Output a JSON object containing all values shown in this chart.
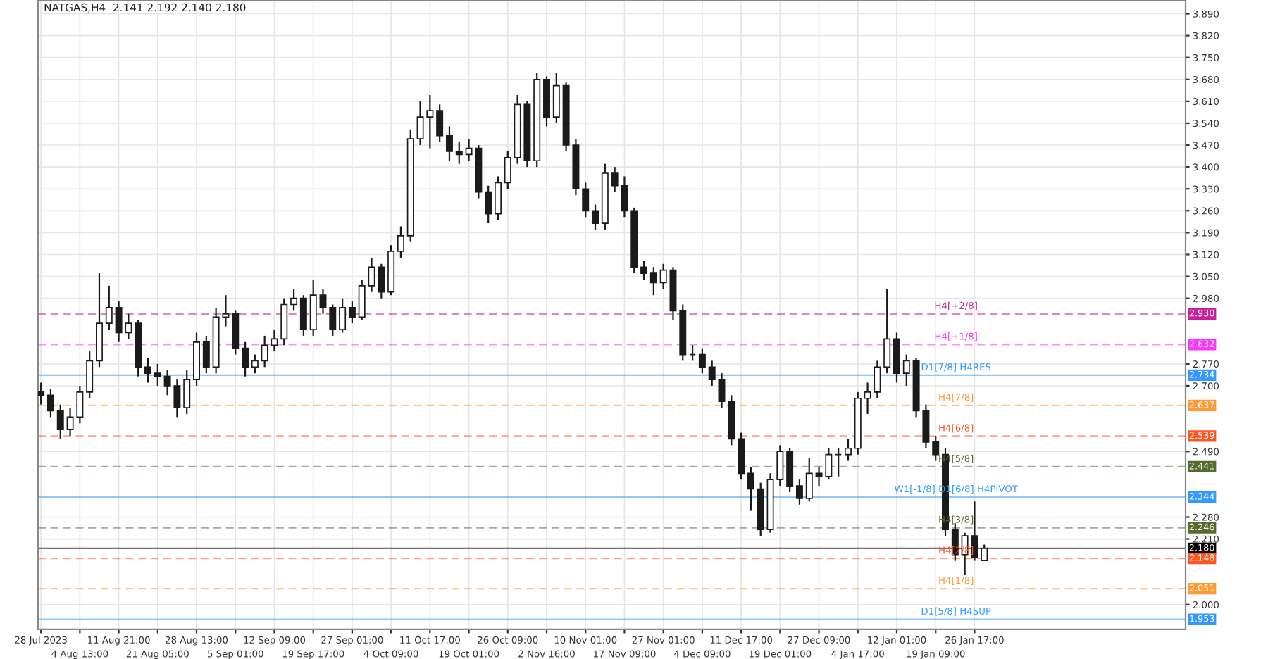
{
  "chart_data": {
    "type": "candlestick",
    "title": "NATGAS,H4  2.141 2.192 2.140 2.180",
    "color": "#1a1a1a",
    "categories": [
      "28 Jul 2023",
      null,
      null,
      null,
      "4 Aug 13:00",
      null,
      null,
      null,
      "11 Aug 21:00",
      null,
      null,
      null,
      "21 Aug 05:00",
      null,
      null,
      null,
      "28 Aug 13:00",
      null,
      null,
      null,
      "5 Sep 01:00",
      null,
      null,
      null,
      "12 Sep 09:00",
      null,
      null,
      null,
      "19 Sep 17:00",
      null,
      null,
      null,
      "27 Sep 01:00",
      null,
      null,
      null,
      "4 Oct 09:00",
      null,
      null,
      null,
      "11 Oct 17:00",
      null,
      null,
      null,
      "19 Oct 01:00",
      null,
      null,
      null,
      "26 Oct 09:00",
      null,
      null,
      null,
      "2 Nov 16:00",
      null,
      null,
      null,
      "10 Nov 01:00",
      null,
      null,
      null,
      "17 Nov 09:00",
      null,
      null,
      null,
      "27 Nov 01:00",
      null,
      null,
      null,
      "4 Dec 09:00",
      null,
      null,
      null,
      "11 Dec 17:00",
      null,
      null,
      null,
      "19 Dec 01:00",
      null,
      null,
      null,
      "27 Dec 09:00",
      null,
      null,
      null,
      "4 Jan 17:00",
      null,
      null,
      null,
      "12 Jan 01:00",
      null,
      null,
      null,
      "19 Jan 09:00",
      null,
      null,
      null,
      "26 Jan 17:00",
      null,
      null,
      null,
      null,
      null,
      null,
      null,
      null,
      null,
      null,
      null,
      null,
      null,
      null,
      null,
      null,
      null,
      null,
      null,
      null,
      null
    ],
    "ohlc": [
      [
        2.68,
        2.71,
        2.64,
        2.67
      ],
      [
        2.67,
        2.69,
        2.6,
        2.62
      ],
      [
        2.62,
        2.64,
        2.53,
        2.56
      ],
      [
        2.56,
        2.63,
        2.54,
        2.6
      ],
      [
        2.6,
        2.7,
        2.58,
        2.68
      ],
      [
        2.68,
        2.81,
        2.66,
        2.78
      ],
      [
        2.78,
        3.06,
        2.76,
        2.9
      ],
      [
        2.9,
        3.02,
        2.88,
        2.95
      ],
      [
        2.95,
        2.97,
        2.84,
        2.87
      ],
      [
        2.87,
        2.93,
        2.85,
        2.9
      ],
      [
        2.9,
        2.91,
        2.73,
        2.76
      ],
      [
        2.76,
        2.79,
        2.71,
        2.74
      ],
      [
        2.74,
        2.77,
        2.7,
        2.73
      ],
      [
        2.73,
        2.75,
        2.67,
        2.7
      ],
      [
        2.7,
        2.72,
        2.6,
        2.63
      ],
      [
        2.63,
        2.75,
        2.61,
        2.72
      ],
      [
        2.72,
        2.87,
        2.7,
        2.84
      ],
      [
        2.84,
        2.86,
        2.74,
        2.76
      ],
      [
        2.76,
        2.95,
        2.74,
        2.92
      ],
      [
        2.92,
        2.99,
        2.89,
        2.93
      ],
      [
        2.93,
        2.94,
        2.8,
        2.82
      ],
      [
        2.82,
        2.84,
        2.73,
        2.76
      ],
      [
        2.76,
        2.8,
        2.74,
        2.78
      ],
      [
        2.78,
        2.86,
        2.76,
        2.83
      ],
      [
        2.83,
        2.88,
        2.81,
        2.85
      ],
      [
        2.85,
        2.98,
        2.83,
        2.96
      ],
      [
        2.96,
        3.01,
        2.94,
        2.98
      ],
      [
        2.98,
        2.99,
        2.86,
        2.88
      ],
      [
        2.88,
        3.04,
        2.86,
        2.99
      ],
      [
        2.99,
        3.01,
        2.93,
        2.95
      ],
      [
        2.95,
        2.96,
        2.86,
        2.88
      ],
      [
        2.88,
        2.98,
        2.87,
        2.95
      ],
      [
        2.95,
        2.97,
        2.9,
        2.92
      ],
      [
        2.92,
        3.04,
        2.91,
        3.02
      ],
      [
        3.02,
        3.11,
        3.0,
        3.08
      ],
      [
        3.08,
        3.09,
        2.98,
        3.0
      ],
      [
        3.0,
        3.15,
        2.99,
        3.13
      ],
      [
        3.13,
        3.21,
        3.11,
        3.18
      ],
      [
        3.18,
        3.52,
        3.16,
        3.49
      ],
      [
        3.49,
        3.61,
        3.47,
        3.56
      ],
      [
        3.56,
        3.63,
        3.46,
        3.58
      ],
      [
        3.58,
        3.6,
        3.48,
        3.5
      ],
      [
        3.5,
        3.53,
        3.42,
        3.45
      ],
      [
        3.45,
        3.48,
        3.41,
        3.44
      ],
      [
        3.44,
        3.49,
        3.42,
        3.46
      ],
      [
        3.46,
        3.47,
        3.3,
        3.32
      ],
      [
        3.32,
        3.34,
        3.22,
        3.25
      ],
      [
        3.25,
        3.37,
        3.23,
        3.35
      ],
      [
        3.35,
        3.45,
        3.33,
        3.43
      ],
      [
        3.43,
        3.63,
        3.41,
        3.6
      ],
      [
        3.6,
        3.61,
        3.4,
        3.42
      ],
      [
        3.42,
        3.7,
        3.4,
        3.68
      ],
      [
        3.68,
        3.69,
        3.53,
        3.56
      ],
      [
        3.56,
        3.7,
        3.54,
        3.66
      ],
      [
        3.66,
        3.67,
        3.45,
        3.47
      ],
      [
        3.47,
        3.49,
        3.31,
        3.33
      ],
      [
        3.33,
        3.35,
        3.24,
        3.26
      ],
      [
        3.26,
        3.28,
        3.2,
        3.22
      ],
      [
        3.22,
        3.41,
        3.2,
        3.38
      ],
      [
        3.38,
        3.4,
        3.32,
        3.34
      ],
      [
        3.34,
        3.37,
        3.24,
        3.26
      ],
      [
        3.26,
        3.27,
        3.06,
        3.08
      ],
      [
        3.08,
        3.1,
        3.04,
        3.06
      ],
      [
        3.06,
        3.08,
        2.99,
        3.03
      ],
      [
        3.03,
        3.09,
        3.01,
        3.07
      ],
      [
        3.07,
        3.08,
        2.91,
        2.94
      ],
      [
        2.94,
        2.96,
        2.78,
        2.8
      ],
      [
        2.8,
        2.83,
        2.78,
        2.8
      ],
      [
        2.8,
        2.82,
        2.74,
        2.76
      ],
      [
        2.76,
        2.78,
        2.7,
        2.72
      ],
      [
        2.72,
        2.74,
        2.63,
        2.65
      ],
      [
        2.65,
        2.67,
        2.51,
        2.53
      ],
      [
        2.53,
        2.55,
        2.4,
        2.42
      ],
      [
        2.42,
        2.44,
        2.3,
        2.37
      ],
      [
        2.37,
        2.39,
        2.22,
        2.24
      ],
      [
        2.24,
        2.42,
        2.23,
        2.4
      ],
      [
        2.4,
        2.51,
        2.38,
        2.49
      ],
      [
        2.49,
        2.5,
        2.36,
        2.38
      ],
      [
        2.38,
        2.4,
        2.32,
        2.34
      ],
      [
        2.34,
        2.47,
        2.33,
        2.42
      ],
      [
        2.42,
        2.44,
        2.38,
        2.41
      ],
      [
        2.41,
        2.5,
        2.4,
        2.48
      ],
      [
        2.48,
        2.5,
        2.41,
        2.48
      ],
      [
        2.48,
        2.53,
        2.46,
        2.5
      ],
      [
        2.5,
        2.68,
        2.48,
        2.66
      ],
      [
        2.66,
        2.71,
        2.61,
        2.68
      ],
      [
        2.68,
        2.78,
        2.66,
        2.76
      ],
      [
        2.76,
        3.01,
        2.74,
        2.85
      ],
      [
        2.85,
        2.87,
        2.71,
        2.74
      ],
      [
        2.74,
        2.8,
        2.7,
        2.78
      ],
      [
        2.78,
        2.79,
        2.6,
        2.62
      ],
      [
        2.62,
        2.64,
        2.5,
        2.52
      ],
      [
        2.52,
        2.54,
        2.46,
        2.48
      ],
      [
        2.48,
        2.5,
        2.22,
        2.24
      ],
      [
        2.24,
        2.26,
        2.14,
        2.16
      ],
      [
        2.16,
        2.23,
        2.095,
        2.22
      ],
      [
        2.22,
        2.33,
        2.14,
        2.15
      ],
      [
        2.141,
        2.192,
        2.14,
        2.18
      ],
      null,
      null,
      null,
      null,
      null,
      null,
      null,
      null,
      null,
      null,
      null,
      null,
      null,
      null,
      null,
      null,
      null,
      null,
      null,
      null
    ],
    "ylim": [
      1.921,
      3.934
    ],
    "yticks": [
      {
        "value": 2.0,
        "label": "2.000"
      },
      {
        "value": 2.21,
        "label": "2.210"
      },
      {
        "value": 2.28,
        "label": "2.280"
      },
      {
        "value": 2.49,
        "label": "2.490"
      },
      {
        "value": 2.7,
        "label": "2.700"
      },
      {
        "value": 2.77,
        "label": "2.770"
      },
      {
        "value": 2.98,
        "label": "2.980"
      },
      {
        "value": 3.05,
        "label": "3.050"
      },
      {
        "value": 3.12,
        "label": "3.120"
      },
      {
        "value": 3.19,
        "label": "3.190"
      },
      {
        "value": 3.26,
        "label": "3.260"
      },
      {
        "value": 3.33,
        "label": "3.330"
      },
      {
        "value": 3.4,
        "label": "3.400"
      },
      {
        "value": 3.47,
        "label": "3.470"
      },
      {
        "value": 3.54,
        "label": "3.540"
      },
      {
        "value": 3.61,
        "label": "3.610"
      },
      {
        "value": 3.68,
        "label": "3.680"
      },
      {
        "value": 3.75,
        "label": "3.750"
      },
      {
        "value": 3.82,
        "label": "3.820"
      },
      {
        "value": 3.89,
        "label": "3.890"
      }
    ],
    "annotations": [
      {
        "text": "2.930",
        "y": 2.93
      },
      {
        "text": "2.832",
        "y": 2.832
      },
      {
        "text": "2.734",
        "y": 2.734
      },
      {
        "text": "2.637",
        "y": 2.637
      },
      {
        "text": "2.539",
        "y": 2.539
      },
      {
        "text": "2.441",
        "y": 2.441
      },
      {
        "text": "2.344",
        "y": 2.344
      },
      {
        "text": "2.246",
        "y": 2.246
      },
      {
        "text": "2.180",
        "y": 2.18
      },
      {
        "text": "2.148",
        "y": 2.148
      },
      {
        "text": "2.051",
        "y": 2.051
      },
      {
        "text": "1.953",
        "y": 1.953
      }
    ],
    "grid": true,
    "ref_lines": [
      {
        "axis": "y",
        "value": 2.93,
        "label": "H4[+2/8]",
        "color": "#c8209a",
        "line_style": "dashed"
      },
      {
        "axis": "y",
        "value": 2.832,
        "label": "H4[+1/8]",
        "color": "#ff33ff",
        "line_style": "dashed"
      },
      {
        "axis": "y",
        "value": 2.734,
        "label": "D1[7/8] H4RES",
        "color": "#3399ff",
        "line_style": "solid"
      },
      {
        "axis": "y",
        "value": 2.637,
        "label": "H4[7/8]",
        "color": "#ff9933",
        "line_style": "dashed"
      },
      {
        "axis": "y",
        "value": 2.539,
        "label": "H4[6/8]",
        "color": "#ff5522",
        "line_style": "dashed"
      },
      {
        "axis": "y",
        "value": 2.441,
        "label": "H4[5/8]",
        "color": "#556b2f",
        "line_style": "dashed"
      },
      {
        "axis": "y",
        "value": 2.344,
        "label": "W1[-1/8] D1[6/8] H4PIVOT",
        "color": "#3399ff",
        "line_style": "solid"
      },
      {
        "axis": "y",
        "value": 2.246,
        "label": "H4[3/8]",
        "color": "#556b2f",
        "line_style": "dashed"
      },
      {
        "axis": "y",
        "value": 2.18,
        "label": null,
        "color": "#000000",
        "line_style": "solid"
      },
      {
        "axis": "y",
        "value": 2.148,
        "label": "H4[2/8]",
        "color": "#ff5522",
        "line_style": "dashed"
      },
      {
        "axis": "y",
        "value": 2.051,
        "label": "H4[1/8]",
        "color": "#ff9933",
        "line_style": "dashed"
      },
      {
        "axis": "y",
        "value": 1.953,
        "label": "D1[5/8] H4SUP",
        "color": "#3399ff",
        "line_style": "solid"
      }
    ]
  }
}
